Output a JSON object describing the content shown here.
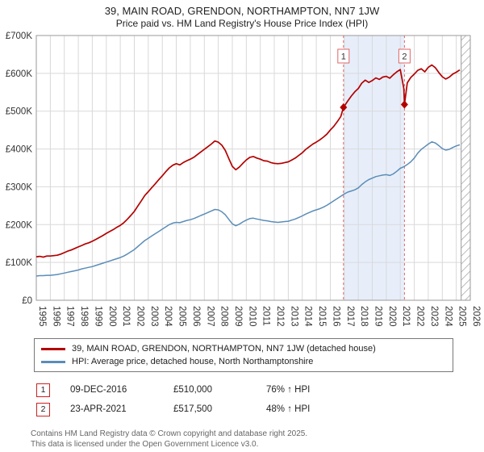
{
  "page": {
    "title": "39, MAIN ROAD, GRENDON, NORTHAMPTON, NN7 1JW",
    "subtitle": "Price paid vs. HM Land Registry's House Price Index (HPI)"
  },
  "chart_data": {
    "type": "line",
    "title": "39, MAIN ROAD, GRENDON, NORTHAMPTON, NN7 1JW — Price paid vs. HPI",
    "xlim": [
      1995,
      2026
    ],
    "ylim": [
      0,
      700
    ],
    "yticks": [
      0,
      100,
      200,
      300,
      400,
      500,
      600,
      700
    ],
    "ytick_labels": [
      "£0",
      "£100K",
      "£200K",
      "£300K",
      "£400K",
      "£500K",
      "£600K",
      "£700K"
    ],
    "xticks": [
      1995,
      1996,
      1997,
      1998,
      1999,
      2000,
      2001,
      2002,
      2003,
      2004,
      2005,
      2006,
      2007,
      2008,
      2009,
      2010,
      2011,
      2012,
      2013,
      2014,
      2015,
      2016,
      2017,
      2018,
      2019,
      2020,
      2021,
      2022,
      2023,
      2024,
      2025,
      2026
    ],
    "x_start": 1995,
    "x_step": 0.25,
    "grid": true,
    "units_k": true,
    "series": [
      {
        "name": "39, MAIN ROAD, GRENDON, NORTHAMPTON, NN7 1JW (detached house)",
        "color": "#b30000",
        "values_k": [
          115,
          116,
          114,
          117,
          117,
          118,
          119,
          122,
          126,
          130,
          133,
          137,
          141,
          145,
          149,
          152,
          156,
          161,
          166,
          171,
          177,
          182,
          187,
          193,
          198,
          205,
          214,
          224,
          235,
          249,
          263,
          277,
          287,
          298,
          308,
          319,
          329,
          340,
          350,
          357,
          361,
          358,
          364,
          369,
          373,
          378,
          385,
          392,
          399,
          406,
          413,
          421,
          418,
          410,
          396,
          375,
          354,
          345,
          352,
          362,
          371,
          378,
          380,
          376,
          373,
          369,
          368,
          364,
          362,
          361,
          362,
          364,
          366,
          371,
          376,
          383,
          390,
          399,
          406,
          413,
          418,
          424,
          431,
          439,
          450,
          460,
          472,
          486,
          513,
          527,
          540,
          551,
          560,
          574,
          582,
          576,
          581,
          588,
          584,
          590,
          592,
          587,
          596,
          604,
          610,
          560,
          575,
          589,
          598,
          608,
          612,
          604,
          616,
          622,
          615,
          602,
          591,
          585,
          590,
          598,
          603,
          609
        ]
      },
      {
        "name": "HPI: Average price, detached house, North Northamptonshire",
        "color": "#5b8db8",
        "values_k": [
          64,
          65,
          65,
          66,
          66,
          67,
          68,
          70,
          72,
          74,
          76,
          78,
          80,
          83,
          85,
          87,
          89,
          92,
          95,
          98,
          101,
          104,
          107,
          110,
          113,
          117,
          122,
          128,
          134,
          142,
          150,
          158,
          164,
          170,
          176,
          182,
          188,
          194,
          200,
          204,
          206,
          205,
          208,
          211,
          213,
          216,
          220,
          224,
          228,
          232,
          236,
          240,
          239,
          234,
          226,
          214,
          202,
          197,
          201,
          207,
          212,
          216,
          217,
          215,
          213,
          211,
          210,
          208,
          207,
          206,
          207,
          208,
          209,
          212,
          215,
          219,
          223,
          228,
          232,
          236,
          239,
          242,
          246,
          251,
          257,
          263,
          269,
          275,
          281,
          286,
          289,
          292,
          297,
          306,
          313,
          319,
          323,
          327,
          329,
          331,
          332,
          330,
          334,
          341,
          349,
          353,
          359,
          366,
          376,
          389,
          399,
          406,
          413,
          419,
          416,
          409,
          401,
          397,
          399,
          404,
          408,
          411
        ]
      }
    ],
    "sales": [
      {
        "label": "1",
        "x": 2016.94,
        "y_k": 510
      },
      {
        "label": "2",
        "x": 2021.3,
        "y_k": 517.5
      }
    ],
    "shaded_span": [
      2016.94,
      2021.3
    ],
    "hatched_span": [
      2025.35,
      2026
    ],
    "colors": {
      "grid": "#d9d9d9",
      "border": "#999999",
      "shade": "#e7eefa",
      "sale_line": "#e06666",
      "hatch": "#bbbbbb",
      "tick_text": "#333333"
    }
  },
  "legend": {
    "items": [
      {
        "label": "39, MAIN ROAD, GRENDON, NORTHAMPTON, NN7 1JW (detached house)",
        "color": "#b30000"
      },
      {
        "label": "HPI: Average price, detached house, North Northamptonshire",
        "color": "#5b8db8"
      }
    ]
  },
  "transactions": [
    {
      "num": "1",
      "date": "09-DEC-2016",
      "price": "£510,000",
      "hpi_change": "76% ↑ HPI"
    },
    {
      "num": "2",
      "date": "23-APR-2021",
      "price": "£517,500",
      "hpi_change": "48% ↑ HPI"
    }
  ],
  "footer": [
    "Contains HM Land Registry data © Crown copyright and database right 2025.",
    "This data is licensed under the Open Government Licence v3.0."
  ]
}
